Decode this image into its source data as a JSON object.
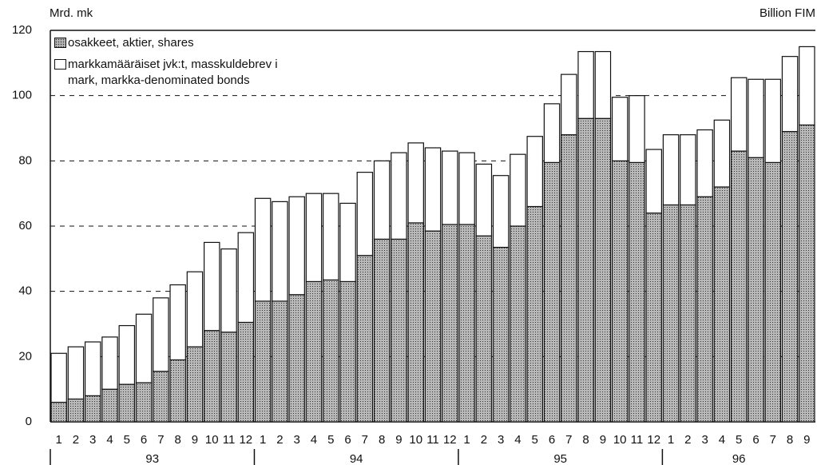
{
  "chart_data": {
    "type": "stacked_bar",
    "y_label_left": "Mrd. mk",
    "y_label_right": "Billion FIM",
    "categories": [
      "1",
      "2",
      "3",
      "4",
      "5",
      "6",
      "7",
      "8",
      "9",
      "10",
      "11",
      "12",
      "1",
      "2",
      "3",
      "4",
      "5",
      "6",
      "7",
      "8",
      "9",
      "10",
      "11",
      "12",
      "1",
      "2",
      "3",
      "4",
      "5",
      "6",
      "7",
      "8",
      "9",
      "10",
      "11",
      "12",
      "1",
      "2",
      "3",
      "4",
      "5",
      "6",
      "7",
      "8",
      "9"
    ],
    "groups": [
      "93",
      "94",
      "95",
      "96"
    ],
    "series": [
      {
        "name": "osakkeet, aktier, shares",
        "color": "#b8b8b8",
        "values": [
          6,
          7,
          8,
          10,
          11.5,
          12,
          15.5,
          19,
          23,
          28,
          27.5,
          30.5,
          37,
          37,
          39,
          43,
          43.5,
          43,
          51,
          56,
          56,
          61,
          58.5,
          60.5,
          60.5,
          57,
          53.5,
          60,
          66,
          79.5,
          88,
          93,
          93,
          80,
          79.5,
          64,
          66.5,
          66.5,
          69,
          72,
          83,
          81,
          79.5,
          89,
          91
        ]
      },
      {
        "name": "markkamääräiset jvk:t, masskuldebrev i mark, markka-denominated bonds",
        "color": "#ffffff",
        "values": [
          15,
          16,
          16.5,
          16,
          18,
          21,
          22.5,
          23,
          23,
          27,
          25.5,
          27.5,
          31.5,
          30.5,
          30,
          27,
          26.5,
          24,
          25.5,
          24,
          26.5,
          24.5,
          25.5,
          22.5,
          22,
          22,
          22,
          22,
          21.5,
          18,
          18.5,
          20.5,
          20.5,
          19.5,
          20.5,
          19.5,
          21.5,
          21.5,
          20.5,
          20.5,
          22.5,
          24,
          25.5,
          23,
          24
        ]
      }
    ],
    "ylim": [
      0,
      120
    ],
    "yticks": [
      0,
      20,
      40,
      60,
      80,
      100,
      120
    ],
    "grid": true
  }
}
